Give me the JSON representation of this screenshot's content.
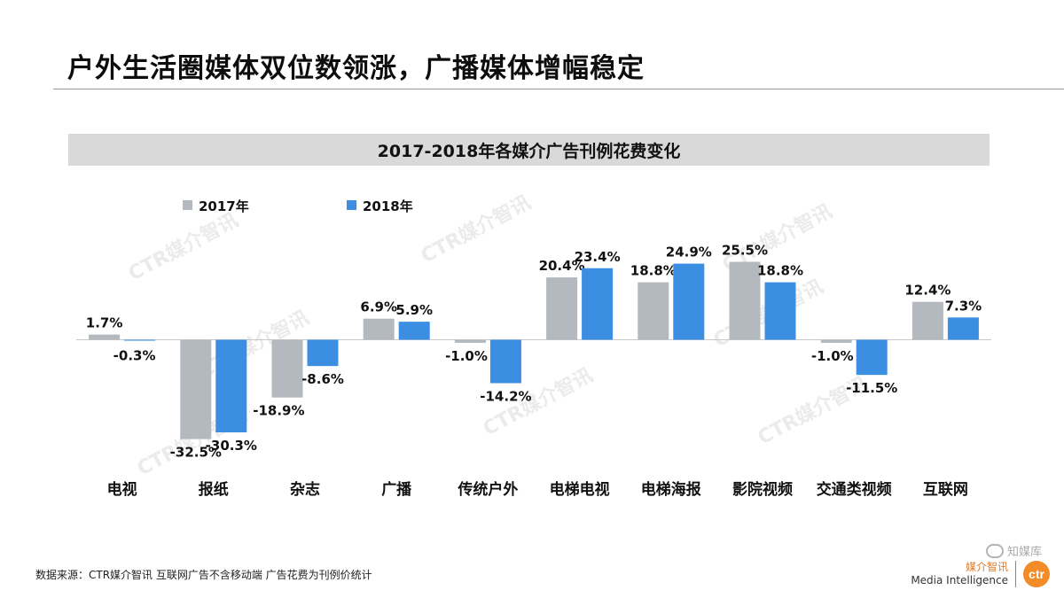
{
  "slide": {
    "title": "户外生活圈媒体双位数领涨，广播媒体增幅稳定",
    "footer_source": "数据来源：CTR媒介智讯 互联网广告不含移动端 广告花费为刊例价统计"
  },
  "brand": {
    "name_cn": "媒介智讯",
    "name_en": "Media Intelligence",
    "logo_text": "ctr",
    "logo_color": "#f28c28"
  },
  "watermark": {
    "chart_text": "CTR媒介智讯",
    "channel_text": "知媒库"
  },
  "colors": {
    "series_2017": "#b4b9c0",
    "series_2018": "#3c8ee3",
    "baseline": "#c8c8c8"
  },
  "chart_data": {
    "type": "bar",
    "title": "2017-2018年各媒介广告刊例花费变化",
    "xlabel": "",
    "ylabel": "",
    "ylim": [
      -35,
      27
    ],
    "legend_position": "top-left",
    "grid": false,
    "categories": [
      "电视",
      "报纸",
      "杂志",
      "广播",
      "传统户外",
      "电梯电视",
      "电梯海报",
      "影院视频",
      "交通类视频",
      "互联网"
    ],
    "series": [
      {
        "name": "2017年",
        "color": "#b4b9c0",
        "values": [
          1.7,
          -32.5,
          -18.9,
          6.9,
          -1.0,
          20.4,
          18.8,
          25.5,
          -1.0,
          12.4
        ]
      },
      {
        "name": "2018年",
        "color": "#3c8ee3",
        "values": [
          -0.3,
          -30.3,
          -8.6,
          5.9,
          -14.2,
          23.4,
          24.9,
          18.8,
          -11.5,
          7.3
        ]
      }
    ],
    "data_labels": [
      [
        "1.7%",
        "-32.5%",
        "-18.9%",
        "6.9%",
        "-1.0%",
        "20.4%",
        "18.8%",
        "25.5%",
        "-1.0%",
        "12.4%"
      ],
      [
        "-0.3%",
        "-30.3%",
        "-8.6%",
        "5.9%",
        "-14.2%",
        "23.4%",
        "24.9%",
        "18.8%",
        "-11.5%",
        "7.3%"
      ]
    ]
  }
}
